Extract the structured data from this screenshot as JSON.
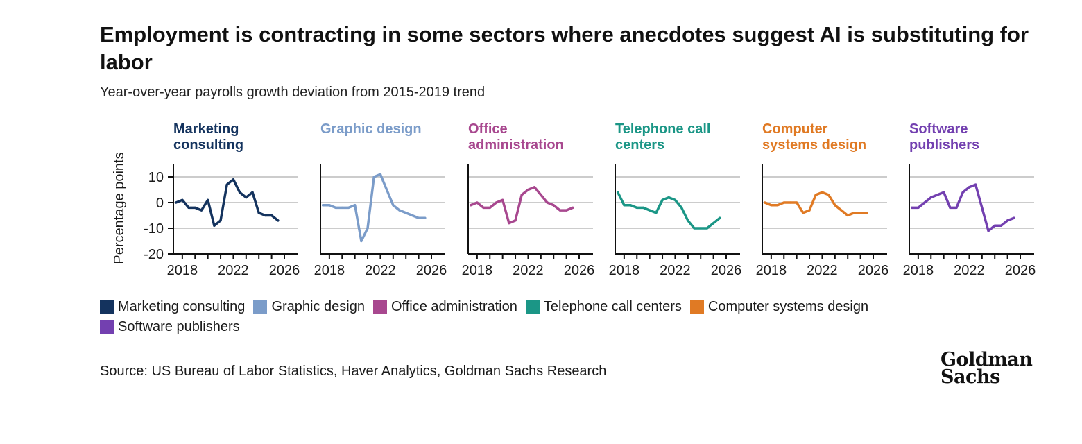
{
  "title": "Employment is contracting in some sectors where anecdotes suggest AI is substituting for labor",
  "subtitle": "Year-over-year payrolls growth deviation from 2015-2019 trend",
  "source": "Source: US Bureau of Labor Statistics, Haver Analytics, Goldman Sachs Research",
  "logo": {
    "line1": "Goldman",
    "line2": "Sachs"
  },
  "colors": {
    "marketing": "#14335e",
    "graphic": "#7b9cc9",
    "office": "#a8488f",
    "telephone": "#1b9686",
    "computer": "#e07a24",
    "software": "#7340b0",
    "grid": "#cccccc",
    "axis": "#111111"
  },
  "legend": [
    {
      "label": "Marketing consulting",
      "color": "#14335e"
    },
    {
      "label": "Graphic design",
      "color": "#7b9cc9"
    },
    {
      "label": "Office administration",
      "color": "#a8488f"
    },
    {
      "label": "Telephone call centers",
      "color": "#1b9686"
    },
    {
      "label": "Computer systems design",
      "color": "#e07a24"
    },
    {
      "label": "Software publishers",
      "color": "#7340b0"
    }
  ],
  "chart_data": {
    "type": "line",
    "ylabel": "Percentage points",
    "ylim": [
      -20,
      15
    ],
    "yticks": [
      10,
      0,
      -10,
      -20
    ],
    "xlim": [
      2017.3,
      2026
    ],
    "xticks": [
      2018,
      2022,
      2026
    ],
    "x": [
      2017.5,
      2018.0,
      2018.5,
      2019.0,
      2019.5,
      2020.0,
      2020.5,
      2021.0,
      2021.5,
      2022.0,
      2022.5,
      2023.0,
      2023.5,
      2024.0,
      2024.5,
      2025.0,
      2025.5
    ],
    "series": [
      {
        "name": "Marketing consulting",
        "title": [
          "Marketing",
          "consulting"
        ],
        "color": "#14335e",
        "values": [
          0,
          1,
          -2,
          -2,
          -3,
          1,
          -9,
          -7,
          7,
          9,
          4,
          2,
          4,
          -4,
          -5,
          -5,
          -7
        ]
      },
      {
        "name": "Graphic design",
        "title": [
          "Graphic design"
        ],
        "color": "#7b9cc9",
        "values": [
          -1,
          -1,
          -2,
          -2,
          -2,
          -1,
          -15,
          -10,
          10,
          11,
          5,
          -1,
          -3,
          -4,
          -5,
          -6,
          -6
        ]
      },
      {
        "name": "Office administration",
        "title": [
          "Office",
          "administration"
        ],
        "color": "#a8488f",
        "values": [
          -1,
          0,
          -2,
          -2,
          0,
          1,
          -8,
          -7,
          3,
          5,
          6,
          3,
          0,
          -1,
          -3,
          -3,
          -2
        ]
      },
      {
        "name": "Telephone call centers",
        "title": [
          "Telephone call",
          "centers"
        ],
        "color": "#1b9686",
        "values": [
          4,
          -1,
          -1,
          -2,
          -2,
          -3,
          -4,
          1,
          2,
          1,
          -2,
          -7,
          -10,
          -10,
          -10,
          -8,
          -6
        ]
      },
      {
        "name": "Computer systems design",
        "title": [
          "Computer",
          "systems design"
        ],
        "color": "#e07a24",
        "values": [
          0,
          -1,
          -1,
          0,
          0,
          0,
          -4,
          -3,
          3,
          4,
          3,
          -1,
          -3,
          -5,
          -4,
          -4,
          -4
        ]
      },
      {
        "name": "Software publishers",
        "title": [
          "Software",
          "publishers"
        ],
        "color": "#7340b0",
        "values": [
          -2,
          -2,
          0,
          2,
          3,
          4,
          -2,
          -2,
          4,
          6,
          7,
          -2,
          -11,
          -9,
          -9,
          -7,
          -6
        ]
      }
    ]
  }
}
